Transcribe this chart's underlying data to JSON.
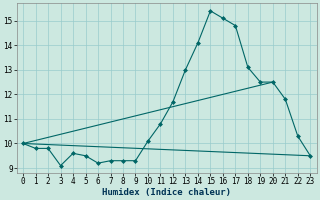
{
  "xlabel": "Humidex (Indice chaleur)",
  "bg_color": "#cce8e0",
  "grid_color": "#99cccc",
  "line_color": "#006666",
  "xlim": [
    -0.5,
    23.5
  ],
  "ylim": [
    8.8,
    15.7
  ],
  "yticks": [
    9,
    10,
    11,
    12,
    13,
    14,
    15
  ],
  "xticks": [
    0,
    1,
    2,
    3,
    4,
    5,
    6,
    7,
    8,
    9,
    10,
    11,
    12,
    13,
    14,
    15,
    16,
    17,
    18,
    19,
    20,
    21,
    22,
    23
  ],
  "series1_x": [
    0,
    1,
    2,
    3,
    4,
    5,
    6,
    7,
    8,
    9,
    10,
    11,
    12,
    13,
    14,
    15,
    16,
    17,
    18,
    19,
    20,
    21,
    22,
    23
  ],
  "series1_y": [
    10.0,
    9.8,
    9.8,
    9.1,
    9.6,
    9.5,
    9.2,
    9.3,
    9.3,
    9.3,
    10.1,
    10.8,
    11.7,
    13.0,
    14.1,
    15.4,
    15.1,
    14.8,
    13.1,
    12.5,
    12.5,
    11.8,
    10.3,
    9.5
  ],
  "series2_x": [
    0,
    23
  ],
  "series2_y": [
    10.0,
    9.5
  ],
  "series3_x": [
    0,
    20
  ],
  "series3_y": [
    10.0,
    12.5
  ]
}
